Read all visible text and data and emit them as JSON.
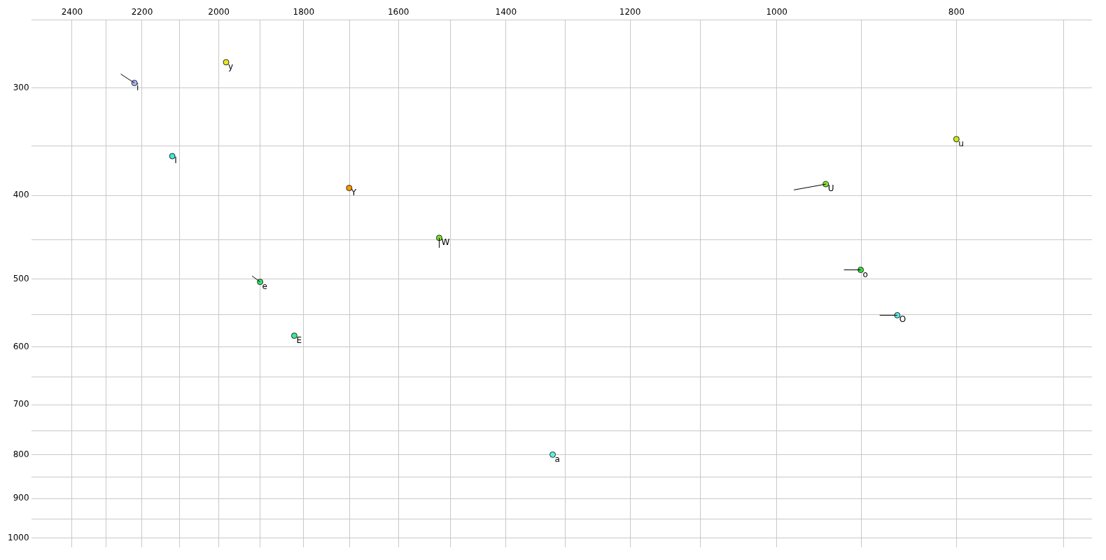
{
  "chart_data": {
    "type": "scatter",
    "xlim": [
      2525,
      676
    ],
    "ylim": [
      1025,
      250
    ],
    "xticks": [
      2400,
      {
        "value": 2300,
        "label": null
      },
      2200,
      {
        "value": 2100,
        "label": null
      },
      2000,
      {
        "value": 1900,
        "label": null
      },
      1800,
      {
        "value": 1700,
        "label": null
      },
      1600,
      {
        "value": 1500,
        "label": null
      },
      1400,
      {
        "value": 1300,
        "label": null
      },
      1200,
      {
        "value": 1100,
        "label": null
      },
      1000,
      {
        "value": 900,
        "label": null
      },
      800,
      {
        "value": 700,
        "label": null
      }
    ],
    "yticks": [
      {
        "value": 250,
        "label": null
      },
      300,
      {
        "value": 350,
        "label": null
      },
      400,
      {
        "value": 450,
        "label": null
      },
      500,
      {
        "value": 550,
        "label": null
      },
      600,
      {
        "value": 650,
        "label": null
      },
      700,
      {
        "value": 750,
        "label": null
      },
      800,
      {
        "value": 850,
        "label": null
      },
      900,
      {
        "value": 950,
        "label": null
      },
      1000
    ],
    "log": "xy",
    "grid": true,
    "legend": false,
    "marker": "circle",
    "series": [
      {
        "type": "line",
        "marker": "none",
        "color": "#000000",
        "x": [
          2259,
          2221
        ],
        "values": [
          289,
          296
        ]
      },
      {
        "type": "line",
        "marker": "none",
        "color": "#000000",
        "x": [
          1521,
          1521
        ],
        "values": [
          460,
          448
        ]
      },
      {
        "type": "line",
        "marker": "none",
        "color": "#000000",
        "x": [
          1919,
          1900
        ],
        "values": [
          496,
          504
        ]
      },
      {
        "type": "line",
        "marker": "none",
        "color": "#000000",
        "x": [
          979,
          941
        ],
        "values": [
          394,
          388
        ]
      },
      {
        "type": "line",
        "marker": "none",
        "color": "#000000",
        "x": [
          920,
          901
        ],
        "values": [
          488,
          488
        ]
      },
      {
        "type": "line",
        "marker": "none",
        "color": "#000000",
        "x": [
          880,
          861
        ],
        "values": [
          551,
          551
        ]
      },
      {
        "name": "i",
        "color": "#a8b8ff",
        "x": [
          2221
        ],
        "values": [
          296
        ]
      },
      {
        "name": "y",
        "color": "#e8e820",
        "x": [
          1982
        ],
        "values": [
          280
        ]
      },
      {
        "name": "I",
        "color": "#40e8d8",
        "x": [
          2119
        ],
        "values": [
          360
        ]
      },
      {
        "name": "Y",
        "color": "#ff9a00",
        "x": [
          1701
        ],
        "values": [
          392
        ]
      },
      {
        "name": "W",
        "color": "#80e030",
        "x": [
          1521
        ],
        "values": [
          448
        ]
      },
      {
        "name": "e",
        "color": "#40e070",
        "x": [
          1900
        ],
        "values": [
          504
        ]
      },
      {
        "name": "E",
        "color": "#40e890",
        "x": [
          1821
        ],
        "values": [
          582
        ]
      },
      {
        "name": "a",
        "color": "#60f0e0",
        "x": [
          1321
        ],
        "values": [
          800
        ]
      },
      {
        "name": "u",
        "color": "#c8e820",
        "x": [
          800
        ],
        "values": [
          344
        ]
      },
      {
        "name": "U",
        "color": "#80e030",
        "x": [
          941
        ],
        "values": [
          388
        ]
      },
      {
        "name": "o",
        "color": "#40e040",
        "x": [
          901
        ],
        "values": [
          488
        ]
      },
      {
        "name": "O",
        "color": "#60e8e8",
        "x": [
          861
        ],
        "values": [
          551
        ]
      }
    ]
  }
}
